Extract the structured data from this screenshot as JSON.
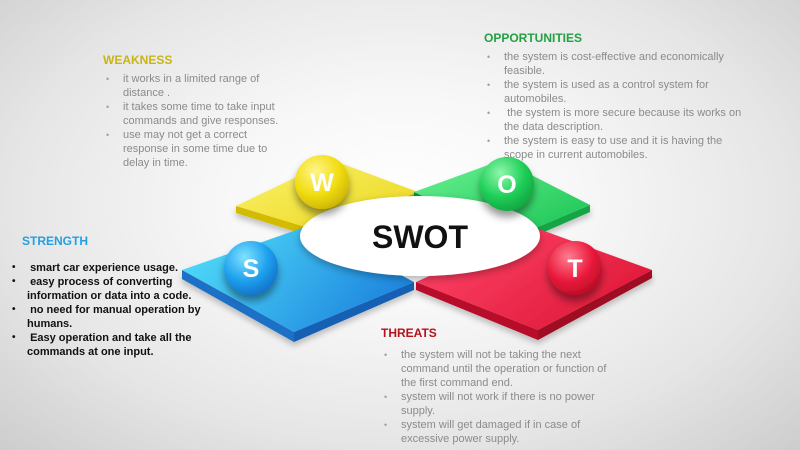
{
  "center_label": "SWOT",
  "strength": {
    "heading": "STRENGTH",
    "letter": "S",
    "color": "#239fe3",
    "items": [
      " smart car experience usage.",
      " easy process of converting information or data into a code.",
      " no need for manual operation by humans.",
      " Easy operation and take all the commands at one input."
    ]
  },
  "weakness": {
    "heading": "WEAKNESS",
    "letter": "W",
    "color": "#c9b512",
    "items": [
      "it works in a limited range of distance .",
      "it takes some time to take input commands and give responses.",
      "use may not get a correct response in some time due to delay in time."
    ]
  },
  "opportunities": {
    "heading": "OPPORTUNITIES",
    "letter": "O",
    "color": "#22a143",
    "items": [
      "the system is cost-effective and economically feasible.",
      "the system is used as a control system for automobiles.",
      " the system is more secure because its works on the data description.",
      "the system is easy to use and it is having the scope in current automobiles."
    ]
  },
  "threats": {
    "heading": "THREATS",
    "letter": "T",
    "color": "#b3121b",
    "items": [
      "the system will not be taking the next command until the operation or function of the first command end.",
      "system will not work if there is no power supply.",
      "system will get damaged if in case of excessive power supply."
    ]
  }
}
